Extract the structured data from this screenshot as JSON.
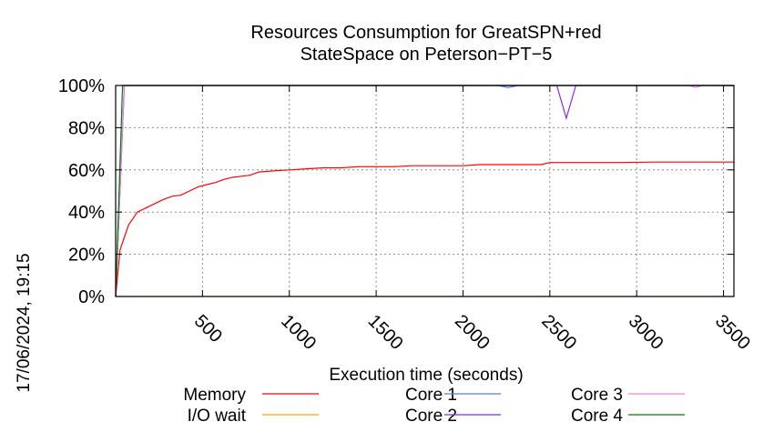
{
  "chart_data": {
    "type": "line",
    "title_lines": [
      "Resources Consumption for GreatSPN+red",
      "StateSpace on Peterson−PT−5"
    ],
    "xlabel": "Execution time (seconds)",
    "ylabel": "",
    "timestamp": "17/06/2024, 19:15",
    "xlim": [
      0,
      3560
    ],
    "ylim": [
      0,
      100
    ],
    "x_ticks": [
      {
        "value": 500,
        "label": "500"
      },
      {
        "value": 1000,
        "label": "1000"
      },
      {
        "value": 1500,
        "label": "1500"
      },
      {
        "value": 2000,
        "label": "2000"
      },
      {
        "value": 2500,
        "label": "2500"
      },
      {
        "value": 3000,
        "label": "3000"
      },
      {
        "value": 3500,
        "label": "3500"
      }
    ],
    "y_ticks": [
      {
        "value": 0,
        "label": "0%"
      },
      {
        "value": 20,
        "label": "20%"
      },
      {
        "value": 40,
        "label": "40%"
      },
      {
        "value": 60,
        "label": "60%"
      },
      {
        "value": 80,
        "label": "80%"
      },
      {
        "value": 100,
        "label": "100%"
      }
    ],
    "grid": true,
    "legend_position": "bottom",
    "series": [
      {
        "name": "Memory",
        "color": "#ff0000",
        "points": [
          [
            0,
            0
          ],
          [
            25,
            22
          ],
          [
            50,
            28
          ],
          [
            75,
            34
          ],
          [
            100,
            37
          ],
          [
            125,
            40
          ],
          [
            175,
            42
          ],
          [
            225,
            44
          ],
          [
            275,
            46
          ],
          [
            325,
            47.5
          ],
          [
            375,
            48
          ],
          [
            425,
            50
          ],
          [
            475,
            52
          ],
          [
            525,
            53
          ],
          [
            575,
            54
          ],
          [
            625,
            55.5
          ],
          [
            675,
            56.5
          ],
          [
            725,
            57
          ],
          [
            775,
            57.5
          ],
          [
            825,
            59
          ],
          [
            900,
            59.5
          ],
          [
            1000,
            60
          ],
          [
            1100,
            60.5
          ],
          [
            1200,
            61
          ],
          [
            1300,
            61
          ],
          [
            1400,
            61.5
          ],
          [
            1500,
            61.5
          ],
          [
            1600,
            61.5
          ],
          [
            1700,
            62
          ],
          [
            1800,
            62
          ],
          [
            1900,
            62
          ],
          [
            2000,
            62
          ],
          [
            2100,
            62.5
          ],
          [
            2200,
            62.5
          ],
          [
            2300,
            62.5
          ],
          [
            2450,
            62.5
          ],
          [
            2500,
            63.5
          ],
          [
            2700,
            63.5
          ],
          [
            2900,
            63.5
          ],
          [
            3100,
            63.7
          ],
          [
            3300,
            63.7
          ],
          [
            3560,
            63.7
          ]
        ]
      },
      {
        "name": "I/O wait",
        "color": "#ffa500",
        "points": [
          [
            0,
            0
          ],
          [
            3560,
            0
          ]
        ]
      },
      {
        "name": "Core 1",
        "color": "#4f7fd8",
        "points": [
          [
            0,
            0
          ],
          [
            50,
            100
          ],
          [
            2200,
            100
          ],
          [
            2260,
            99
          ],
          [
            2320,
            100
          ],
          [
            3560,
            100
          ]
        ]
      },
      {
        "name": "Core 2",
        "color": "#8a2be2",
        "points": [
          [
            0,
            0
          ],
          [
            50,
            100
          ],
          [
            2540,
            100
          ],
          [
            2595,
            84.5
          ],
          [
            2650,
            100
          ],
          [
            3560,
            100
          ]
        ]
      },
      {
        "name": "Core 3",
        "color": "#ee82ee",
        "points": [
          [
            0,
            0
          ],
          [
            50,
            100
          ],
          [
            3300,
            100
          ],
          [
            3340,
            99
          ],
          [
            3380,
            100
          ],
          [
            3560,
            100
          ]
        ]
      },
      {
        "name": "Core 4",
        "color": "#008000",
        "points": [
          [
            0,
            0
          ],
          [
            40,
            100
          ],
          [
            3560,
            100
          ]
        ]
      }
    ]
  }
}
